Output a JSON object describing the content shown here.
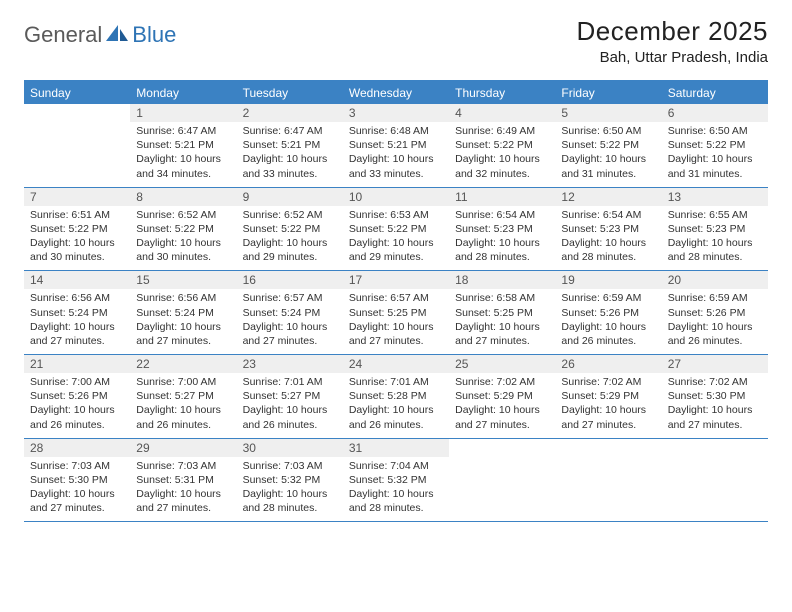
{
  "brand": {
    "general": "General",
    "blue": "Blue"
  },
  "title": "December 2025",
  "location": "Bah, Uttar Pradesh, India",
  "colors": {
    "accent": "#3b82c4",
    "header_bg": "#3b82c4",
    "header_text": "#ffffff",
    "daynum_bg": "#efefef",
    "text": "#333333",
    "logo_gray": "#5a5a5a",
    "logo_blue": "#2e74b5"
  },
  "day_headers": [
    "Sunday",
    "Monday",
    "Tuesday",
    "Wednesday",
    "Thursday",
    "Friday",
    "Saturday"
  ],
  "weeks": [
    [
      {
        "n": "",
        "sunrise": "",
        "sunset": "",
        "daylight": ""
      },
      {
        "n": "1",
        "sunrise": "Sunrise: 6:47 AM",
        "sunset": "Sunset: 5:21 PM",
        "daylight": "Daylight: 10 hours and 34 minutes."
      },
      {
        "n": "2",
        "sunrise": "Sunrise: 6:47 AM",
        "sunset": "Sunset: 5:21 PM",
        "daylight": "Daylight: 10 hours and 33 minutes."
      },
      {
        "n": "3",
        "sunrise": "Sunrise: 6:48 AM",
        "sunset": "Sunset: 5:21 PM",
        "daylight": "Daylight: 10 hours and 33 minutes."
      },
      {
        "n": "4",
        "sunrise": "Sunrise: 6:49 AM",
        "sunset": "Sunset: 5:22 PM",
        "daylight": "Daylight: 10 hours and 32 minutes."
      },
      {
        "n": "5",
        "sunrise": "Sunrise: 6:50 AM",
        "sunset": "Sunset: 5:22 PM",
        "daylight": "Daylight: 10 hours and 31 minutes."
      },
      {
        "n": "6",
        "sunrise": "Sunrise: 6:50 AM",
        "sunset": "Sunset: 5:22 PM",
        "daylight": "Daylight: 10 hours and 31 minutes."
      }
    ],
    [
      {
        "n": "7",
        "sunrise": "Sunrise: 6:51 AM",
        "sunset": "Sunset: 5:22 PM",
        "daylight": "Daylight: 10 hours and 30 minutes."
      },
      {
        "n": "8",
        "sunrise": "Sunrise: 6:52 AM",
        "sunset": "Sunset: 5:22 PM",
        "daylight": "Daylight: 10 hours and 30 minutes."
      },
      {
        "n": "9",
        "sunrise": "Sunrise: 6:52 AM",
        "sunset": "Sunset: 5:22 PM",
        "daylight": "Daylight: 10 hours and 29 minutes."
      },
      {
        "n": "10",
        "sunrise": "Sunrise: 6:53 AM",
        "sunset": "Sunset: 5:22 PM",
        "daylight": "Daylight: 10 hours and 29 minutes."
      },
      {
        "n": "11",
        "sunrise": "Sunrise: 6:54 AM",
        "sunset": "Sunset: 5:23 PM",
        "daylight": "Daylight: 10 hours and 28 minutes."
      },
      {
        "n": "12",
        "sunrise": "Sunrise: 6:54 AM",
        "sunset": "Sunset: 5:23 PM",
        "daylight": "Daylight: 10 hours and 28 minutes."
      },
      {
        "n": "13",
        "sunrise": "Sunrise: 6:55 AM",
        "sunset": "Sunset: 5:23 PM",
        "daylight": "Daylight: 10 hours and 28 minutes."
      }
    ],
    [
      {
        "n": "14",
        "sunrise": "Sunrise: 6:56 AM",
        "sunset": "Sunset: 5:24 PM",
        "daylight": "Daylight: 10 hours and 27 minutes."
      },
      {
        "n": "15",
        "sunrise": "Sunrise: 6:56 AM",
        "sunset": "Sunset: 5:24 PM",
        "daylight": "Daylight: 10 hours and 27 minutes."
      },
      {
        "n": "16",
        "sunrise": "Sunrise: 6:57 AM",
        "sunset": "Sunset: 5:24 PM",
        "daylight": "Daylight: 10 hours and 27 minutes."
      },
      {
        "n": "17",
        "sunrise": "Sunrise: 6:57 AM",
        "sunset": "Sunset: 5:25 PM",
        "daylight": "Daylight: 10 hours and 27 minutes."
      },
      {
        "n": "18",
        "sunrise": "Sunrise: 6:58 AM",
        "sunset": "Sunset: 5:25 PM",
        "daylight": "Daylight: 10 hours and 27 minutes."
      },
      {
        "n": "19",
        "sunrise": "Sunrise: 6:59 AM",
        "sunset": "Sunset: 5:26 PM",
        "daylight": "Daylight: 10 hours and 26 minutes."
      },
      {
        "n": "20",
        "sunrise": "Sunrise: 6:59 AM",
        "sunset": "Sunset: 5:26 PM",
        "daylight": "Daylight: 10 hours and 26 minutes."
      }
    ],
    [
      {
        "n": "21",
        "sunrise": "Sunrise: 7:00 AM",
        "sunset": "Sunset: 5:26 PM",
        "daylight": "Daylight: 10 hours and 26 minutes."
      },
      {
        "n": "22",
        "sunrise": "Sunrise: 7:00 AM",
        "sunset": "Sunset: 5:27 PM",
        "daylight": "Daylight: 10 hours and 26 minutes."
      },
      {
        "n": "23",
        "sunrise": "Sunrise: 7:01 AM",
        "sunset": "Sunset: 5:27 PM",
        "daylight": "Daylight: 10 hours and 26 minutes."
      },
      {
        "n": "24",
        "sunrise": "Sunrise: 7:01 AM",
        "sunset": "Sunset: 5:28 PM",
        "daylight": "Daylight: 10 hours and 26 minutes."
      },
      {
        "n": "25",
        "sunrise": "Sunrise: 7:02 AM",
        "sunset": "Sunset: 5:29 PM",
        "daylight": "Daylight: 10 hours and 27 minutes."
      },
      {
        "n": "26",
        "sunrise": "Sunrise: 7:02 AM",
        "sunset": "Sunset: 5:29 PM",
        "daylight": "Daylight: 10 hours and 27 minutes."
      },
      {
        "n": "27",
        "sunrise": "Sunrise: 7:02 AM",
        "sunset": "Sunset: 5:30 PM",
        "daylight": "Daylight: 10 hours and 27 minutes."
      }
    ],
    [
      {
        "n": "28",
        "sunrise": "Sunrise: 7:03 AM",
        "sunset": "Sunset: 5:30 PM",
        "daylight": "Daylight: 10 hours and 27 minutes."
      },
      {
        "n": "29",
        "sunrise": "Sunrise: 7:03 AM",
        "sunset": "Sunset: 5:31 PM",
        "daylight": "Daylight: 10 hours and 27 minutes."
      },
      {
        "n": "30",
        "sunrise": "Sunrise: 7:03 AM",
        "sunset": "Sunset: 5:32 PM",
        "daylight": "Daylight: 10 hours and 28 minutes."
      },
      {
        "n": "31",
        "sunrise": "Sunrise: 7:04 AM",
        "sunset": "Sunset: 5:32 PM",
        "daylight": "Daylight: 10 hours and 28 minutes."
      },
      {
        "n": "",
        "sunrise": "",
        "sunset": "",
        "daylight": ""
      },
      {
        "n": "",
        "sunrise": "",
        "sunset": "",
        "daylight": ""
      },
      {
        "n": "",
        "sunrise": "",
        "sunset": "",
        "daylight": ""
      }
    ]
  ]
}
